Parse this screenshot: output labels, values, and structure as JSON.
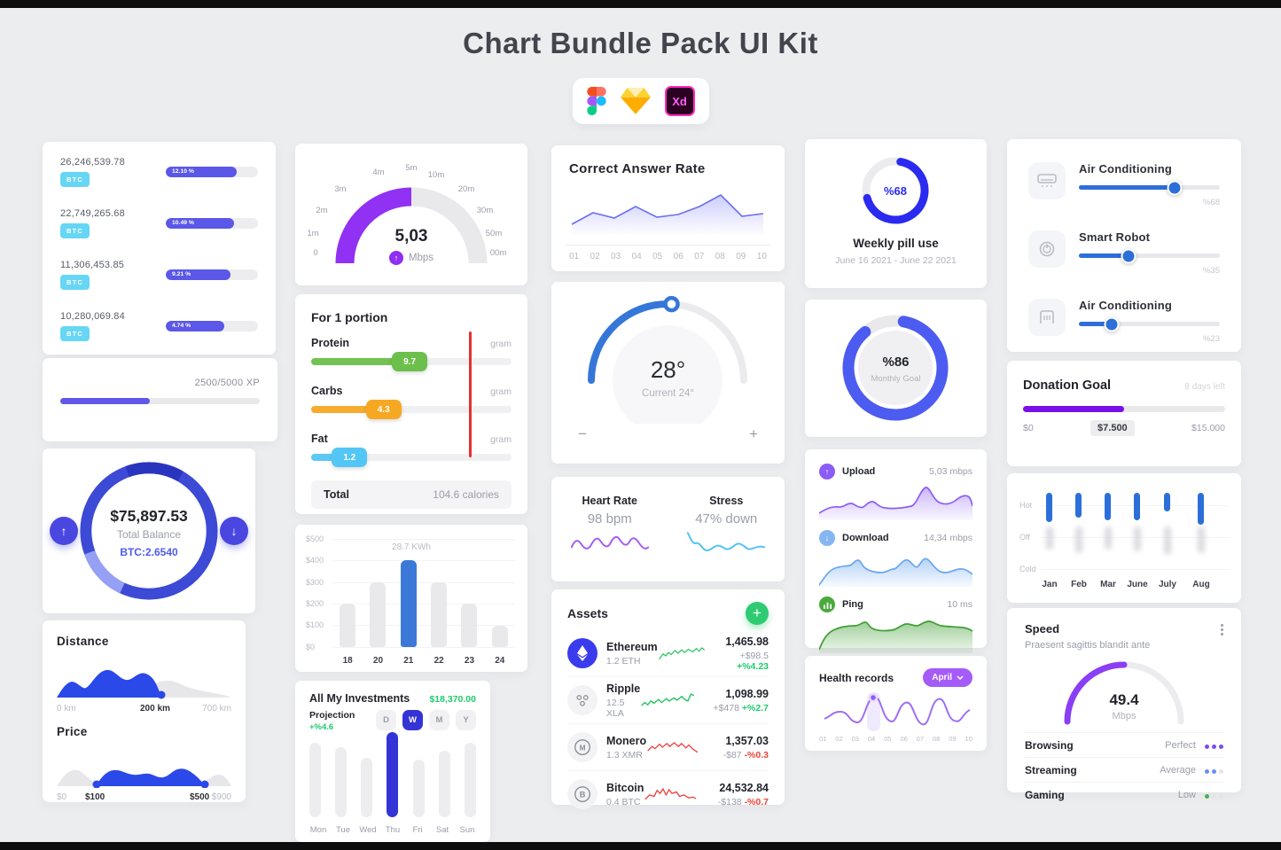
{
  "page": {
    "title": "Chart Bundle Pack UI Kit",
    "tools": {
      "figma": "Figma",
      "sketch": "Sketch",
      "xd": "Adobe XD",
      "xd_label": "Xd"
    }
  },
  "btc_card": {
    "rows": [
      {
        "amount": "26,246,539.78",
        "currency": "BTC",
        "percent": "12.10 %",
        "fill_pct": 77
      },
      {
        "amount": "22,749,265.68",
        "currency": "BTC",
        "percent": "10.49 %",
        "fill_pct": 74
      },
      {
        "amount": "11,306,453.85",
        "currency": "BTC",
        "percent": "9.21 %",
        "fill_pct": 70
      },
      {
        "amount": "10,280,069.84",
        "currency": "BTC",
        "percent": "4.74 %",
        "fill_pct": 63
      }
    ]
  },
  "xp_card": {
    "label": "2500/5000 XP",
    "fill_pct": 45
  },
  "balance_card": {
    "amount": "$75,897.53",
    "label": "Total Balance",
    "btc": "BTC:2.6540",
    "up_arrow": "↑",
    "down_arrow": "↓"
  },
  "distance_price_card": {
    "distance_title": "Distance",
    "distance_ticks": [
      "0 km",
      "200 km",
      "700 km"
    ],
    "price_title": "Price",
    "price_ticks": [
      "$0",
      "$100",
      "$500",
      "$900"
    ]
  },
  "speed_gauge_card": {
    "value": "5,03",
    "unit": "Mbps",
    "arrow": "↑",
    "ticks": [
      "0",
      "1m",
      "2m",
      "3m",
      "4m",
      "5m",
      "10m",
      "20m",
      "30m",
      "50m",
      "00m"
    ]
  },
  "portion_card": {
    "title": "For 1 portion",
    "rows": [
      {
        "label": "Protein",
        "value": "9.7",
        "unit": "gram",
        "color": "#6cbf4a",
        "fill_pct": 58
      },
      {
        "label": "Carbs",
        "value": "4.3",
        "unit": "gram",
        "color": "#f7a823",
        "fill_pct": 45
      },
      {
        "label": "Fat",
        "value": "1.2",
        "unit": "gram",
        "color": "#53c6f5",
        "fill_pct": 28
      }
    ],
    "total_label": "Total",
    "total_value": "104.6 calories"
  },
  "kwh_card": {
    "annotation": "28.7 KWh",
    "yticks": [
      "$500",
      "$400",
      "$300",
      "$200",
      "$100",
      "$0"
    ],
    "categories": [
      "18",
      "20",
      "21",
      "22",
      "23",
      "24"
    ]
  },
  "investments_card": {
    "title": "All My Investments",
    "amount": "$18,370.00",
    "projection_label": "Projection",
    "projection_value": "+%4.6",
    "ranges": [
      "D",
      "W",
      "M",
      "Y"
    ],
    "selected_range": "W",
    "days": [
      "Mon",
      "Tue",
      "Wed",
      "Thu",
      "Fri",
      "Sat",
      "Sun"
    ],
    "selected_day": "Thu",
    "bar_pcts": [
      88,
      82,
      70,
      100,
      68,
      78,
      88
    ]
  },
  "answer_card": {
    "title": "Correct Answer Rate",
    "xticks": [
      "01",
      "02",
      "03",
      "04",
      "05",
      "06",
      "07",
      "08",
      "09",
      "10"
    ]
  },
  "temp_card": {
    "value": "28°",
    "current": "Current 24°",
    "decrease": "−",
    "increase": "+"
  },
  "heart_stress_card": {
    "heart_title": "Heart Rate",
    "heart_value": "98 bpm",
    "stress_title": "Stress",
    "stress_value": "47% down"
  },
  "assets_card": {
    "title": "Assets",
    "add_label": "+",
    "rows": [
      {
        "name": "Ethereum",
        "holding": "1.2 ETH",
        "price": "1,465.98",
        "change": "+$98.5",
        "change_pct": "+%4.23",
        "trend": "up",
        "icon_letter": ""
      },
      {
        "name": "Ripple",
        "holding": "12.5 XLA",
        "price": "1,098.99",
        "change": "+$478",
        "change_pct": "+%2.7",
        "trend": "up",
        "icon_letter": ""
      },
      {
        "name": "Monero",
        "holding": "1.3 XMR",
        "price": "1,357.03",
        "change": "-$87",
        "change_pct": "-%0.3",
        "trend": "down",
        "icon_letter": "M"
      },
      {
        "name": "Bitcoin",
        "holding": "0.4 BTC",
        "price": "24,532.84",
        "change": "-$138",
        "change_pct": "-%0.7",
        "trend": "down",
        "icon_letter": "B"
      }
    ]
  },
  "pill_card": {
    "percent": "%68",
    "percent_value": 68,
    "title": "Weekly pill use",
    "date_range": "June 16 2021 - June 22 2021",
    "ring_color": "#2a2af0"
  },
  "goal_card": {
    "percent": "%86",
    "percent_value": 86,
    "label": "Monthly Goal",
    "ring_color": "#4c5bf0"
  },
  "network_card": {
    "rows": [
      {
        "label": "Upload",
        "value": "5,03 mbps",
        "color": "#8b5cf6",
        "icon": "up-arrow"
      },
      {
        "label": "Download",
        "value": "14,34 mbps",
        "color": "#85b6f2",
        "icon": "down-arrow"
      },
      {
        "label": "Ping",
        "value": "10 ms",
        "color": "#49a93c",
        "icon": "signal-bars"
      }
    ]
  },
  "health_card": {
    "title": "Health records",
    "month": "April",
    "xticks": [
      "01",
      "02",
      "03",
      "04",
      "05",
      "06",
      "07",
      "08",
      "09",
      "10"
    ],
    "highlight_x": "04"
  },
  "sliders_card": {
    "rows": [
      {
        "label": "Air Conditioning",
        "percent": "%68",
        "fill_pct": 68,
        "icon": "air-conditioner"
      },
      {
        "label": "Smart Robot",
        "percent": "%35",
        "fill_pct": 35,
        "icon": "power"
      },
      {
        "label": "Air Conditioning",
        "percent": "%23",
        "fill_pct": 23,
        "icon": "heater"
      }
    ]
  },
  "donation_card": {
    "title": "Donation Goal",
    "days_left": "8 days left",
    "fill_pct": 50,
    "ticks": [
      "$0",
      "$7.500",
      "$15.000"
    ]
  },
  "months_card": {
    "yticks": [
      "Hot",
      "Off",
      "Cold"
    ],
    "xticks": [
      "Jan",
      "Feb",
      "Mar",
      "June",
      "July",
      "Aug"
    ],
    "hot_bar_heights": [
      33,
      28,
      31,
      31,
      21,
      36
    ],
    "shadow_bar_heights": [
      26,
      30,
      26,
      28,
      32,
      30
    ]
  },
  "speed_card": {
    "title": "Speed",
    "subtitle": "Praesent sagittis blandit ante",
    "value": "49.4",
    "unit": "Mbps",
    "rows": [
      {
        "label": "Browsing",
        "rating": "Perfect",
        "dots_filled": 3,
        "dot_color": "#7c4df2"
      },
      {
        "label": "Streaming",
        "rating": "Average",
        "dots_filled": 2,
        "dot_color": "#6c8cf5"
      },
      {
        "label": "Gaming",
        "rating": "Low",
        "dots_filled": 1,
        "dot_color": "#4caf50"
      }
    ]
  },
  "chart_data": [
    {
      "type": "bar",
      "title": "28.7 KWh",
      "categories": [
        18,
        20,
        21,
        22,
        23,
        24
      ],
      "values": [
        200,
        300,
        400,
        300,
        200,
        100
      ],
      "yticks": [
        "$500",
        "$400",
        "$300",
        "$200",
        "$100",
        "$0"
      ],
      "ylim": [
        0,
        500
      ],
      "highlight_index": 2,
      "highlight_color": "#3b78d8",
      "bar_color": "#e9e9ec"
    },
    {
      "type": "bar",
      "title": "All My Investments",
      "categories": [
        "Mon",
        "Tue",
        "Wed",
        "Thu",
        "Fri",
        "Sat",
        "Sun"
      ],
      "values_pct": [
        88,
        82,
        70,
        100,
        68,
        78,
        88
      ],
      "highlight": "Thu"
    },
    {
      "type": "line",
      "title": "Correct Answer Rate",
      "x": [
        "01",
        "02",
        "03",
        "04",
        "05",
        "06",
        "07",
        "08",
        "09",
        "10"
      ],
      "values_norm": [
        0.35,
        0.52,
        0.44,
        0.62,
        0.46,
        0.5,
        0.62,
        0.8,
        0.48,
        0.52
      ]
    },
    {
      "type": "line",
      "title": "Health records",
      "x": [
        "01",
        "02",
        "03",
        "04",
        "05",
        "06",
        "07",
        "08",
        "09",
        "10"
      ],
      "highlight_x": "04"
    }
  ]
}
